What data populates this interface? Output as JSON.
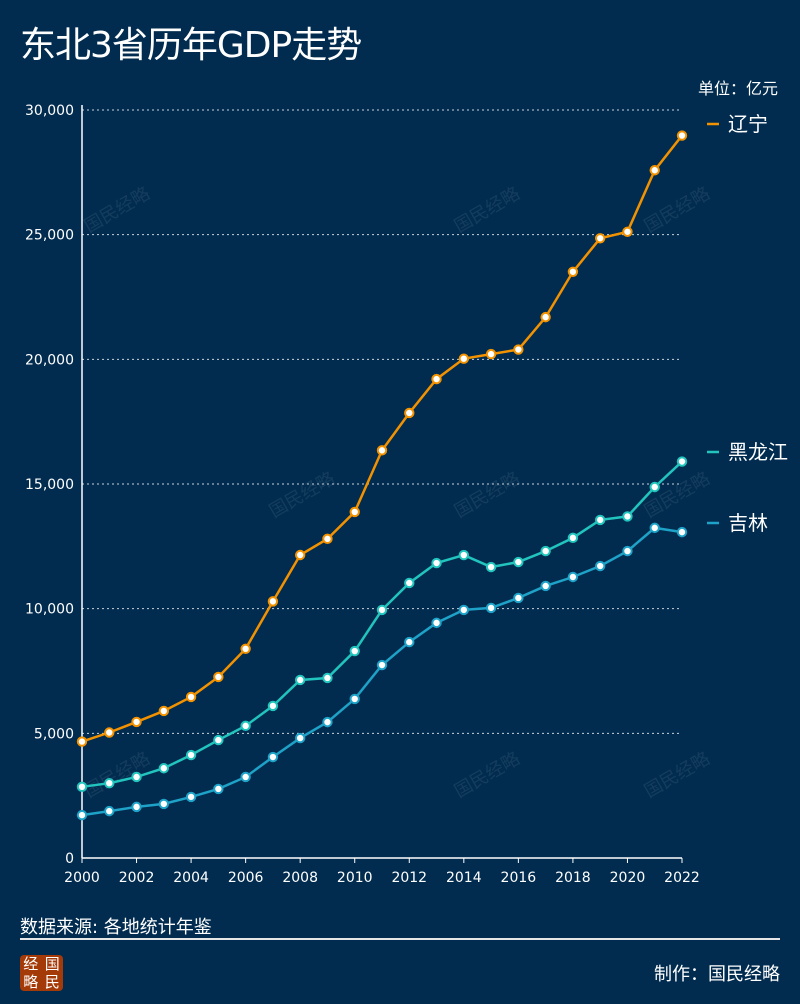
{
  "title": "东北3省历年GDP走势",
  "unit_label": "单位：亿元",
  "source": "数据来源: 各地统计年鉴",
  "maker": "制作：国民经略",
  "logo_text": [
    "经",
    "国",
    "略",
    "民"
  ],
  "watermark": "国民经略",
  "colors": {
    "background": "#012c4f",
    "liaoning": "#f39200",
    "heilongjiang": "#22c4be",
    "jilin": "#1ea2c8"
  },
  "chart_data": {
    "type": "line",
    "title": "东北3省历年GDP走势",
    "x": [
      2000,
      2001,
      2002,
      2003,
      2004,
      2005,
      2006,
      2007,
      2008,
      2009,
      2010,
      2011,
      2012,
      2013,
      2014,
      2015,
      2016,
      2017,
      2018,
      2019,
      2020,
      2021,
      2022
    ],
    "x_ticks": [
      "2000",
      "2002",
      "2004",
      "2006",
      "2008",
      "2010",
      "2012",
      "2014",
      "2016",
      "2018",
      "2020",
      "2022"
    ],
    "y_ticks": [
      0,
      5000,
      10000,
      15000,
      20000,
      25000,
      30000
    ],
    "y_tick_labels": [
      "0",
      "5,000",
      "10,000",
      "15,000",
      "20,000",
      "25,000",
      "30,000"
    ],
    "ylim": [
      0,
      30000
    ],
    "grid": "horizontal dotted",
    "legend": "right, at line ends",
    "series": [
      {
        "name": "辽宁",
        "color": "#f39200",
        "values": [
          4669,
          5033,
          5458,
          5898,
          6460,
          7261,
          8390,
          10292,
          12152,
          12800,
          13880,
          16350,
          17849,
          19208,
          20026,
          20210,
          20393,
          21693,
          23511,
          24855,
          25115,
          27584,
          28975
        ]
      },
      {
        "name": "黑龙江",
        "color": "#22c4be",
        "values": [
          2855,
          3000,
          3250,
          3600,
          4130,
          4730,
          5300,
          6100,
          7140,
          7220,
          8300,
          9950,
          11030,
          11830,
          12150,
          11670,
          11870,
          12310,
          12840,
          13560,
          13700,
          14880,
          15901
        ]
      },
      {
        "name": "吉林",
        "color": "#1ea2c8",
        "values": [
          1720,
          1880,
          2050,
          2170,
          2450,
          2770,
          3250,
          4050,
          4810,
          5450,
          6380,
          7740,
          8660,
          9430,
          9950,
          10030,
          10430,
          10910,
          11270,
          11710,
          12310,
          13240,
          13070
        ]
      }
    ]
  }
}
